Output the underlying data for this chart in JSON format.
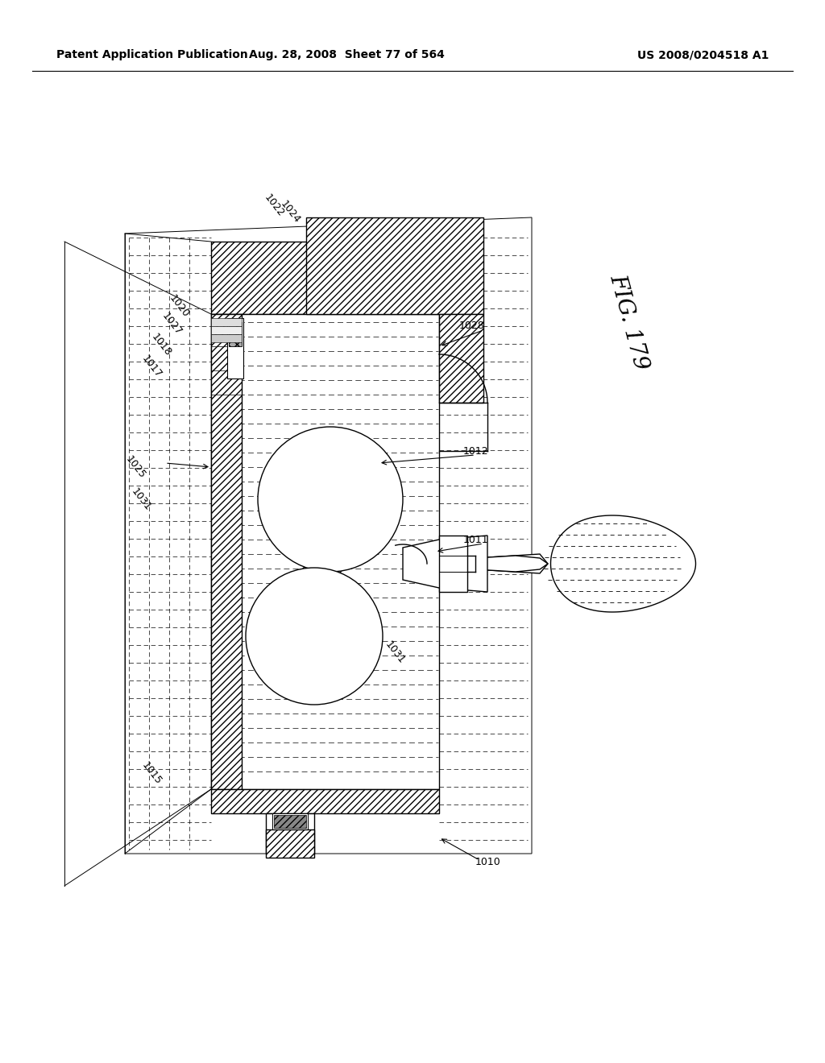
{
  "bg_color": "#ffffff",
  "header_text_left": "Patent Application Publication",
  "header_text_mid": "Aug. 28, 2008  Sheet 77 of 564",
  "header_text_right": "US 2008/0204518 A1",
  "fig_label": "FIG. 179",
  "label_fontsize": 9.0,
  "header_fontsize": 10.0,
  "fig_fontsize": 20
}
